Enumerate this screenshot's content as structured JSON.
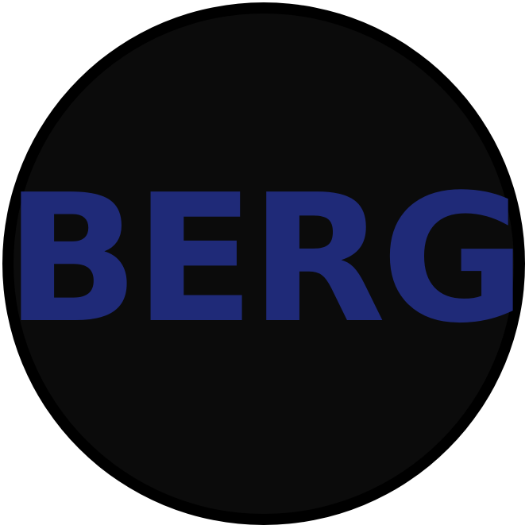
{
  "logo": {
    "text": "BERG",
    "text_color": "#1f2a78",
    "ring_color": "#000000",
    "fill_color": "#0b0b0b"
  }
}
